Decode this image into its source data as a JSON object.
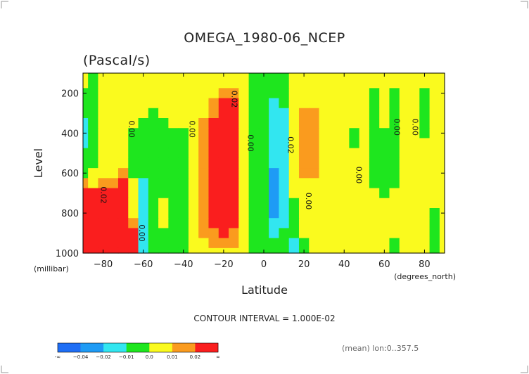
{
  "chart_data": {
    "type": "heatmap",
    "title": "OMEGA_1980-06_NCEP",
    "subtitle": "(Pascal/s)",
    "xlabel": "Latitude",
    "ylabel": "Level",
    "x_unit": "(degrees_north)",
    "y_unit": "(millibar)",
    "xlim": [
      -90,
      90
    ],
    "ylim": [
      1000,
      100
    ],
    "x_ticks": [
      -80,
      -60,
      -40,
      -20,
      0,
      20,
      40,
      60,
      80
    ],
    "x_tick_labels": [
      "−80",
      "−60",
      "−40",
      "−20",
      "0",
      "20",
      "40",
      "60",
      "80"
    ],
    "y_ticks": [
      1000,
      800,
      600,
      400,
      200
    ],
    "y_tick_labels": [
      "1000",
      "800",
      "600",
      "400",
      "200"
    ],
    "contour_interval_text": "CONTOUR INTERVAL = 1.000E-02",
    "footnote": "(mean) lon:0..357.5",
    "colorbar": {
      "boundaries": [
        "-∞",
        "−0.04",
        "−0.02",
        "−0.01",
        "0.0",
        "0.01",
        "0.02",
        "∞"
      ],
      "colors": [
        "#1e6ef5",
        "#1e9bf5",
        "#32e6f0",
        "#1ee61e",
        "#fafa1e",
        "#fa9b1e",
        "#fa1e1e"
      ]
    },
    "contour_labels": [
      {
        "text": "0.00",
        "lat": -67,
        "level": 380
      },
      {
        "text": "0.00",
        "lat": -37,
        "level": 380
      },
      {
        "text": "0.02",
        "lat": -16,
        "level": 230
      },
      {
        "text": "0.00",
        "lat": -8,
        "level": 450
      },
      {
        "text": "0.02",
        "lat": 12,
        "level": 460
      },
      {
        "text": "0.00",
        "lat": 21,
        "level": 740
      },
      {
        "text": "0.00",
        "lat": 46,
        "level": 610
      },
      {
        "text": "0.00",
        "lat": 65,
        "level": 370
      },
      {
        "text": "0.00",
        "lat": 74,
        "level": 370
      },
      {
        "text": "0.02",
        "lat": -81,
        "level": 710
      },
      {
        "text": "0.00",
        "lat": -62,
        "level": 900
      }
    ],
    "lat": [
      -90,
      -85,
      -80,
      -75,
      -70,
      -65,
      -60,
      -55,
      -50,
      -45,
      -40,
      -35,
      -30,
      -25,
      -20,
      -15,
      -10,
      -5,
      0,
      5,
      10,
      15,
      20,
      25,
      30,
      35,
      40,
      45,
      50,
      55,
      60,
      65,
      70,
      75,
      80,
      85,
      90
    ],
    "levels": [
      100,
      150,
      200,
      250,
      300,
      350,
      400,
      450,
      500,
      550,
      600,
      650,
      700,
      750,
      800,
      850,
      900,
      950,
      1000
    ],
    "values": [
      [
        0.003,
        -0.003,
        0.004,
        0.003,
        0.002,
        0.001,
        0.003,
        0.002,
        0.004,
        0.006,
        0.005,
        0.004,
        0.003,
        0.002,
        0.004,
        0.006,
        0.003,
        -0.004,
        -0.005,
        -0.006,
        -0.005,
        0.004,
        0.005,
        0.005,
        0.006,
        0.006,
        0.005,
        0.004,
        0.005,
        0.006,
        0.006,
        0.005,
        0.005,
        0.004,
        0.004,
        0.005,
        0.005
      ],
      [
        0.002,
        -0.003,
        0.003,
        0.003,
        0.003,
        0.001,
        0.003,
        0.003,
        0.004,
        0.006,
        0.005,
        0.004,
        0.003,
        0.003,
        0.006,
        0.007,
        0.004,
        -0.004,
        -0.006,
        -0.008,
        -0.006,
        0.003,
        0.005,
        0.006,
        0.006,
        0.005,
        0.004,
        0.004,
        0.004,
        0.005,
        0.006,
        0.005,
        0.005,
        0.004,
        0.004,
        0.004,
        0.004
      ],
      [
        -0.002,
        -0.004,
        0.003,
        0.003,
        0.004,
        0.002,
        0.004,
        0.004,
        0.004,
        0.006,
        0.005,
        0.004,
        0.004,
        0.008,
        0.018,
        0.016,
        0.004,
        -0.004,
        -0.006,
        -0.01,
        -0.008,
        0.004,
        0.006,
        0.007,
        0.006,
        0.005,
        0.004,
        0.004,
        0.004,
        -0.004,
        0.004,
        -0.004,
        0.004,
        0.004,
        -0.004,
        0.005,
        0.004
      ],
      [
        -0.005,
        -0.004,
        0.003,
        0.004,
        0.004,
        0.002,
        0.004,
        0.004,
        0.004,
        0.006,
        0.005,
        0.004,
        0.006,
        0.014,
        0.026,
        0.024,
        0.005,
        -0.004,
        -0.006,
        -0.012,
        -0.01,
        0.003,
        0.008,
        0.009,
        0.006,
        0.005,
        0.004,
        0.004,
        0.004,
        -0.004,
        0.004,
        -0.004,
        0.004,
        0.004,
        -0.005,
        0.005,
        0.004
      ],
      [
        -0.01,
        -0.004,
        0.003,
        0.004,
        0.004,
        0.003,
        0.004,
        -0.004,
        0.004,
        0.006,
        0.005,
        0.004,
        0.008,
        0.018,
        0.03,
        0.026,
        0.005,
        -0.004,
        -0.006,
        -0.014,
        -0.012,
        0.003,
        0.012,
        0.01,
        0.006,
        0.005,
        0.004,
        0.004,
        0.004,
        -0.004,
        0.004,
        -0.004,
        0.004,
        0.004,
        -0.005,
        0.005,
        0.004
      ],
      [
        -0.012,
        -0.004,
        0.003,
        0.004,
        0.004,
        0.003,
        -0.004,
        -0.004,
        -0.004,
        0.005,
        0.004,
        0.004,
        0.01,
        0.02,
        0.032,
        0.028,
        0.005,
        -0.004,
        -0.006,
        -0.016,
        -0.014,
        0.003,
        0.014,
        0.012,
        0.006,
        0.005,
        0.004,
        0.004,
        0.004,
        -0.004,
        0.004,
        -0.004,
        0.004,
        0.004,
        -0.005,
        0.006,
        0.004
      ],
      [
        -0.012,
        -0.004,
        0.003,
        0.004,
        0.004,
        -0.003,
        -0.004,
        -0.004,
        -0.004,
        -0.004,
        -0.004,
        0.004,
        0.012,
        0.022,
        0.034,
        0.028,
        0.005,
        -0.004,
        -0.006,
        -0.018,
        -0.016,
        0.003,
        0.014,
        0.012,
        0.006,
        0.005,
        0.004,
        -0.004,
        0.004,
        -0.004,
        -0.004,
        -0.004,
        0.004,
        0.004,
        -0.005,
        0.006,
        0.004
      ],
      [
        -0.012,
        -0.004,
        0.003,
        0.004,
        0.004,
        -0.003,
        -0.004,
        -0.004,
        -0.004,
        -0.004,
        -0.004,
        0.004,
        0.012,
        0.022,
        0.034,
        0.028,
        0.005,
        -0.004,
        -0.006,
        -0.02,
        -0.016,
        0.003,
        0.014,
        0.012,
        0.006,
        0.005,
        0.004,
        -0.004,
        0.004,
        -0.004,
        -0.004,
        -0.004,
        0.004,
        0.004,
        0.004,
        0.006,
        0.004
      ],
      [
        -0.01,
        -0.004,
        0.004,
        0.004,
        0.006,
        -0.004,
        -0.006,
        -0.004,
        -0.004,
        -0.004,
        -0.004,
        0.004,
        0.012,
        0.022,
        0.034,
        0.028,
        0.005,
        -0.004,
        -0.006,
        -0.02,
        -0.016,
        0.003,
        0.014,
        0.012,
        0.006,
        0.005,
        0.004,
        0.004,
        0.004,
        -0.004,
        -0.004,
        -0.004,
        0.004,
        0.004,
        0.004,
        0.006,
        0.004
      ],
      [
        -0.006,
        -0.004,
        0.004,
        0.006,
        0.008,
        -0.004,
        -0.008,
        -0.004,
        -0.004,
        -0.004,
        -0.004,
        0.004,
        0.012,
        0.022,
        0.034,
        0.028,
        0.005,
        -0.004,
        -0.006,
        -0.02,
        -0.016,
        0.003,
        0.014,
        0.012,
        0.006,
        0.005,
        0.004,
        0.004,
        0.004,
        -0.004,
        -0.004,
        -0.004,
        0.004,
        0.004,
        0.004,
        0.006,
        0.004
      ],
      [
        -0.004,
        0.004,
        0.006,
        0.008,
        0.014,
        -0.004,
        -0.01,
        -0.004,
        -0.004,
        -0.004,
        -0.004,
        0.004,
        0.012,
        0.022,
        0.034,
        0.028,
        0.005,
        -0.004,
        -0.006,
        -0.022,
        -0.018,
        0.003,
        0.012,
        0.01,
        0.006,
        0.005,
        0.004,
        0.004,
        0.004,
        -0.004,
        -0.004,
        -0.004,
        0.004,
        0.004,
        0.004,
        0.006,
        0.004
      ],
      [
        0.01,
        0.008,
        0.01,
        0.012,
        0.02,
        0.004,
        -0.012,
        -0.004,
        -0.004,
        -0.004,
        -0.004,
        0.004,
        0.012,
        0.022,
        0.034,
        0.028,
        0.005,
        -0.004,
        -0.006,
        -0.022,
        -0.018,
        0.004,
        0.006,
        0.005,
        0.006,
        0.005,
        0.004,
        0.004,
        0.004,
        -0.004,
        -0.004,
        -0.004,
        0.004,
        0.004,
        0.004,
        0.006,
        0.004
      ],
      [
        0.03,
        0.028,
        0.024,
        0.026,
        0.028,
        0.004,
        -0.012,
        -0.004,
        -0.004,
        -0.004,
        -0.004,
        0.004,
        0.012,
        0.022,
        0.034,
        0.028,
        0.005,
        -0.004,
        -0.006,
        -0.024,
        -0.018,
        0.003,
        0.004,
        0.004,
        0.006,
        0.005,
        0.004,
        0.004,
        0.004,
        0.004,
        -0.004,
        0.004,
        0.004,
        0.004,
        0.004,
        0.006,
        0.004
      ],
      [
        0.038,
        0.034,
        0.03,
        0.03,
        0.032,
        0.004,
        -0.014,
        -0.004,
        0.004,
        -0.004,
        -0.004,
        0.004,
        0.012,
        0.022,
        0.034,
        0.028,
        0.005,
        -0.004,
        -0.006,
        -0.024,
        -0.018,
        -0.004,
        0.004,
        0.004,
        0.006,
        0.005,
        0.004,
        0.004,
        0.004,
        0.004,
        0.004,
        0.004,
        0.004,
        0.004,
        0.004,
        0.006,
        0.004
      ],
      [
        0.05,
        0.044,
        0.036,
        0.038,
        0.04,
        0.006,
        -0.016,
        -0.004,
        0.004,
        -0.004,
        -0.004,
        0.004,
        0.012,
        0.022,
        0.034,
        0.028,
        0.005,
        -0.004,
        -0.006,
        -0.024,
        -0.016,
        -0.006,
        0.004,
        0.004,
        0.006,
        0.005,
        0.004,
        0.004,
        0.004,
        0.004,
        0.004,
        0.004,
        0.004,
        0.004,
        0.004,
        -0.004,
        0.004
      ],
      [
        0.06,
        0.054,
        0.046,
        0.05,
        0.052,
        0.01,
        -0.016,
        -0.004,
        0.004,
        -0.004,
        -0.004,
        0.004,
        0.012,
        0.022,
        0.03,
        0.024,
        0.005,
        -0.004,
        -0.006,
        -0.02,
        -0.014,
        -0.008,
        0.004,
        0.004,
        0.006,
        0.005,
        0.004,
        0.004,
        0.004,
        0.004,
        0.004,
        0.004,
        0.004,
        0.004,
        0.004,
        -0.004,
        0.004
      ],
      [
        0.07,
        0.064,
        0.056,
        0.06,
        0.064,
        0.02,
        -0.016,
        -0.004,
        -0.004,
        -0.004,
        -0.004,
        0.004,
        0.01,
        0.018,
        0.024,
        0.018,
        0.004,
        -0.004,
        -0.006,
        -0.014,
        -0.01,
        -0.01,
        0.004,
        0.004,
        0.006,
        0.005,
        0.004,
        0.004,
        0.004,
        0.004,
        0.004,
        0.004,
        0.004,
        0.004,
        0.004,
        -0.004,
        0.004
      ],
      [
        0.08,
        0.074,
        0.066,
        0.07,
        0.074,
        0.03,
        -0.014,
        -0.004,
        -0.004,
        -0.004,
        -0.004,
        0.004,
        0.008,
        0.012,
        0.014,
        0.01,
        0.004,
        -0.004,
        -0.004,
        -0.008,
        -0.006,
        -0.012,
        -0.006,
        0.004,
        0.004,
        0.004,
        0.004,
        0.004,
        0.004,
        0.004,
        0.004,
        -0.004,
        0.004,
        0.004,
        0.004,
        -0.004,
        0.004
      ],
      [
        0.09,
        0.084,
        0.076,
        0.08,
        0.084,
        0.04,
        -0.012,
        -0.004,
        -0.004,
        -0.004,
        -0.004,
        0.004,
        0.006,
        0.008,
        0.008,
        0.006,
        0.004,
        -0.004,
        -0.004,
        -0.006,
        -0.004,
        -0.012,
        -0.008,
        0.004,
        0.004,
        0.004,
        0.004,
        0.004,
        0.004,
        0.004,
        0.004,
        -0.004,
        0.004,
        0.004,
        0.004,
        -0.004,
        0.004
      ]
    ]
  }
}
